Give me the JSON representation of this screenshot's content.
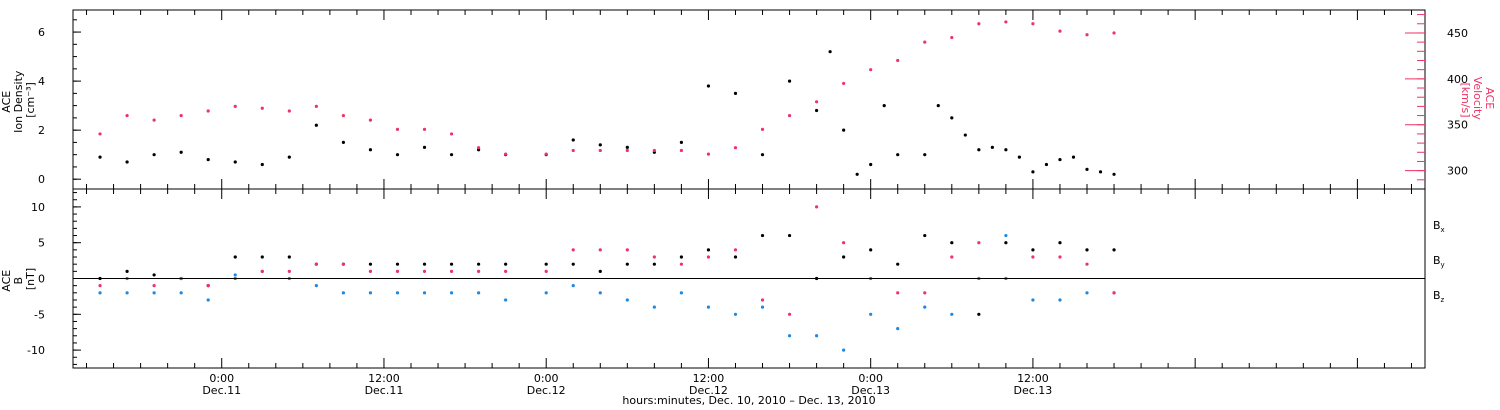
{
  "chart_data": [
    {
      "type": "scatter",
      "panel": "top",
      "ylabel_left": [
        "ACE",
        "Ion Density",
        "[cm⁻³]"
      ],
      "ylabel_right": [
        "ACE",
        "Velocity",
        "[km/s]"
      ],
      "ylim_left": [
        -0.4,
        6.9
      ],
      "ylim_right": [
        280,
        475
      ],
      "yticks_left": [
        "0",
        "2",
        "4",
        "6"
      ],
      "yticks_right": [
        "300",
        "350",
        "400",
        "450"
      ],
      "series": [
        {
          "name": "Ion Density",
          "axis": "left",
          "color": "#000000",
          "points": [
            [
              -9,
              0.9
            ],
            [
              -7,
              0.7
            ],
            [
              -5,
              1.0
            ],
            [
              -3,
              1.1
            ],
            [
              -1,
              0.8
            ],
            [
              1,
              0.7
            ],
            [
              3,
              0.6
            ],
            [
              5,
              0.9
            ],
            [
              7,
              2.2
            ],
            [
              9,
              1.5
            ],
            [
              11,
              1.2
            ],
            [
              13,
              1.0
            ],
            [
              15,
              1.3
            ],
            [
              17,
              1.0
            ],
            [
              19,
              1.2
            ],
            [
              21,
              1.0
            ],
            [
              24,
              1.0
            ],
            [
              26,
              1.6
            ],
            [
              28,
              1.4
            ],
            [
              30,
              1.3
            ],
            [
              32,
              1.1
            ],
            [
              34,
              1.5
            ],
            [
              36,
              3.8
            ],
            [
              38,
              3.5
            ],
            [
              40,
              1.0
            ],
            [
              42,
              4.0
            ],
            [
              44,
              2.8
            ],
            [
              45,
              5.2
            ],
            [
              46,
              2.0
            ],
            [
              47,
              0.2
            ],
            [
              48,
              0.6
            ],
            [
              49,
              3.0
            ],
            [
              50,
              1.0
            ],
            [
              52,
              1.0
            ],
            [
              53,
              3.0
            ],
            [
              54,
              2.5
            ],
            [
              55,
              1.8
            ],
            [
              56,
              1.2
            ],
            [
              57,
              1.3
            ],
            [
              58,
              1.2
            ],
            [
              59,
              0.9
            ],
            [
              60,
              0.3
            ],
            [
              61,
              0.6
            ],
            [
              62,
              0.8
            ],
            [
              63,
              0.9
            ],
            [
              64,
              0.4
            ],
            [
              65,
              0.3
            ],
            [
              66,
              0.2
            ]
          ]
        },
        {
          "name": "Velocity",
          "axis": "right",
          "color": "#ee3366",
          "points": [
            [
              -9,
              340
            ],
            [
              -7,
              360
            ],
            [
              -5,
              355
            ],
            [
              -3,
              360
            ],
            [
              -1,
              365
            ],
            [
              1,
              370
            ],
            [
              3,
              368
            ],
            [
              5,
              365
            ],
            [
              7,
              370
            ],
            [
              9,
              360
            ],
            [
              11,
              355
            ],
            [
              13,
              345
            ],
            [
              15,
              345
            ],
            [
              17,
              340
            ],
            [
              19,
              325
            ],
            [
              21,
              318
            ],
            [
              24,
              318
            ],
            [
              26,
              322
            ],
            [
              28,
              322
            ],
            [
              30,
              322
            ],
            [
              32,
              322
            ],
            [
              34,
              322
            ],
            [
              36,
              318
            ],
            [
              38,
              325
            ],
            [
              40,
              345
            ],
            [
              42,
              360
            ],
            [
              44,
              375
            ],
            [
              46,
              395
            ],
            [
              48,
              410
            ],
            [
              50,
              420
            ],
            [
              52,
              440
            ],
            [
              54,
              445
            ],
            [
              56,
              460
            ],
            [
              58,
              462
            ],
            [
              60,
              460
            ],
            [
              62,
              452
            ],
            [
              64,
              448
            ],
            [
              66,
              450
            ]
          ]
        }
      ]
    },
    {
      "type": "scatter",
      "panel": "bottom",
      "ylabel_left": [
        "ACE",
        "B",
        "[nT]"
      ],
      "ylim_left": [
        -12.5,
        12.5
      ],
      "yticks_left": [
        "10",
        "5",
        "0",
        "-5",
        "-10"
      ],
      "series": [
        {
          "name": "Bx",
          "color": "#000000",
          "points": [
            [
              -9,
              0
            ],
            [
              -7,
              1
            ],
            [
              -5,
              0.5
            ],
            [
              -3,
              0
            ],
            [
              -1,
              -1
            ],
            [
              1,
              3
            ],
            [
              3,
              3
            ],
            [
              5,
              3
            ],
            [
              7,
              2
            ],
            [
              9,
              2
            ],
            [
              11,
              2
            ],
            [
              13,
              2
            ],
            [
              15,
              2
            ],
            [
              17,
              2
            ],
            [
              19,
              2
            ],
            [
              21,
              2
            ],
            [
              24,
              2
            ],
            [
              26,
              2
            ],
            [
              28,
              1
            ],
            [
              30,
              2
            ],
            [
              32,
              2
            ],
            [
              34,
              3
            ],
            [
              36,
              4
            ],
            [
              38,
              3
            ],
            [
              40,
              6
            ],
            [
              42,
              6
            ],
            [
              44,
              0
            ],
            [
              46,
              3
            ],
            [
              48,
              4
            ],
            [
              50,
              2
            ],
            [
              52,
              6
            ],
            [
              54,
              5
            ],
            [
              56,
              -5
            ],
            [
              58,
              5
            ],
            [
              60,
              4
            ],
            [
              62,
              5
            ],
            [
              64,
              4
            ],
            [
              66,
              4
            ]
          ]
        },
        {
          "name": "By",
          "color": "#1f88e0",
          "points": [
            [
              -9,
              -2
            ],
            [
              -7,
              -2
            ],
            [
              -5,
              -2
            ],
            [
              -3,
              -2
            ],
            [
              -1,
              -3
            ],
            [
              1,
              0.5
            ],
            [
              3,
              1
            ],
            [
              5,
              0
            ],
            [
              7,
              -1
            ],
            [
              9,
              -2
            ],
            [
              11,
              -2
            ],
            [
              13,
              -2
            ],
            [
              15,
              -2
            ],
            [
              17,
              -2
            ],
            [
              19,
              -2
            ],
            [
              21,
              -3
            ],
            [
              24,
              -2
            ],
            [
              26,
              -1
            ],
            [
              28,
              -2
            ],
            [
              30,
              -3
            ],
            [
              32,
              -4
            ],
            [
              34,
              -2
            ],
            [
              36,
              -4
            ],
            [
              38,
              -5
            ],
            [
              40,
              -4
            ],
            [
              42,
              -8
            ],
            [
              44,
              -8
            ],
            [
              46,
              -10
            ],
            [
              48,
              -5
            ],
            [
              50,
              -7
            ],
            [
              52,
              -4
            ],
            [
              54,
              -5
            ],
            [
              56,
              0
            ],
            [
              58,
              6
            ],
            [
              60,
              -3
            ],
            [
              62,
              -3
            ],
            [
              64,
              -2
            ],
            [
              66,
              -2
            ]
          ]
        },
        {
          "name": "Bz",
          "color": "#ee3366",
          "points": [
            [
              -9,
              -1
            ],
            [
              -7,
              0
            ],
            [
              -5,
              -1
            ],
            [
              -3,
              0
            ],
            [
              -1,
              -1
            ],
            [
              1,
              0
            ],
            [
              3,
              1
            ],
            [
              5,
              1
            ],
            [
              7,
              2
            ],
            [
              9,
              2
            ],
            [
              11,
              1
            ],
            [
              13,
              1
            ],
            [
              15,
              1
            ],
            [
              17,
              1
            ],
            [
              19,
              1
            ],
            [
              21,
              1
            ],
            [
              24,
              1
            ],
            [
              26,
              4
            ],
            [
              28,
              4
            ],
            [
              30,
              4
            ],
            [
              32,
              3
            ],
            [
              34,
              2
            ],
            [
              36,
              3
            ],
            [
              38,
              4
            ],
            [
              40,
              -3
            ],
            [
              42,
              -5
            ],
            [
              44,
              10
            ],
            [
              46,
              5
            ],
            [
              48,
              0
            ],
            [
              50,
              -2
            ],
            [
              52,
              -2
            ],
            [
              54,
              3
            ],
            [
              56,
              5
            ],
            [
              58,
              0
            ],
            [
              60,
              3
            ],
            [
              62,
              3
            ],
            [
              64,
              2
            ],
            [
              66,
              -2
            ]
          ]
        }
      ],
      "legend": [
        "B",
        "B",
        "B"
      ],
      "legend_subscripts": [
        "x",
        "y",
        "z"
      ],
      "legend_placement": "right"
    }
  ],
  "x_axis": {
    "range_hours": [
      -11,
      89
    ],
    "ticks": [
      {
        "hour": 0,
        "time": "0:00",
        "date": "Dec.11"
      },
      {
        "hour": 12,
        "time": "12:00",
        "date": "Dec.11"
      },
      {
        "hour": 24,
        "time": "0:00",
        "date": "Dec.12"
      },
      {
        "hour": 36,
        "time": "12:00",
        "date": "Dec.12"
      },
      {
        "hour": 48,
        "time": "0:00",
        "date": "Dec.13"
      },
      {
        "hour": 60,
        "time": "12:00",
        "date": "Dec.13"
      }
    ],
    "label": "hours:minutes, Dec. 10, 2010 – Dec. 13, 2010"
  }
}
